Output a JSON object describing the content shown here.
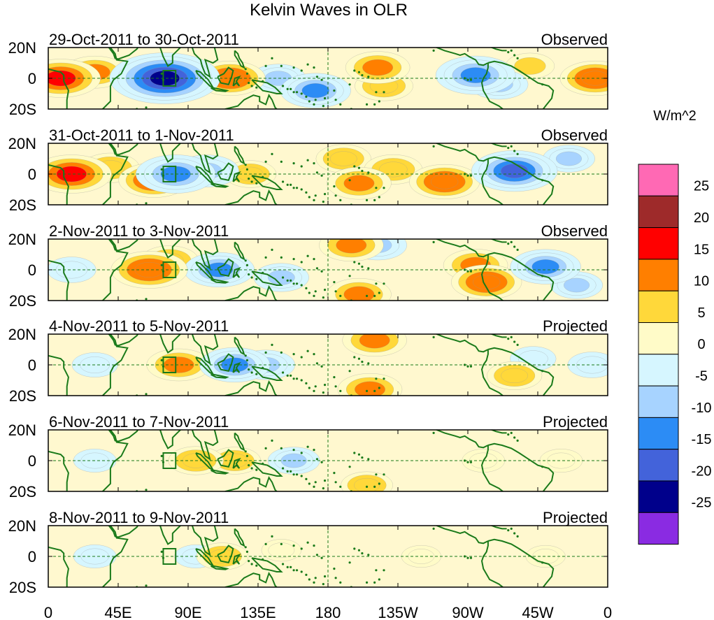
{
  "chart_data": {
    "type": "heatmap",
    "title": "Kelvin Waves in OLR",
    "units_label": "W/m^2",
    "xaxis": {
      "range_deg_east": [
        0,
        360
      ],
      "tick_labels": [
        "0",
        "45E",
        "90E",
        "135E",
        "180",
        "135W",
        "90W",
        "45W",
        "0"
      ],
      "tick_values_deg_east": [
        0,
        45,
        90,
        135,
        180,
        225,
        270,
        315,
        360
      ]
    },
    "yaxis": {
      "range_deg": [
        -20,
        20
      ],
      "tick_labels": [
        "20N",
        "0",
        "20S"
      ],
      "tick_values_deg": [
        20,
        0,
        -20
      ]
    },
    "reference_lines": {
      "equator": 0,
      "dateline": 180
    },
    "highlight_box": {
      "lon": [
        74,
        82
      ],
      "lat": [
        -5,
        5
      ]
    },
    "colorbar": {
      "levels": [
        25,
        20,
        15,
        10,
        5,
        0,
        -5,
        -10,
        -15,
        -20,
        -25
      ],
      "labels": [
        "25",
        "20",
        "15",
        "10",
        "5",
        "0",
        "-5",
        "-10",
        "-15",
        "-20",
        "-25"
      ],
      "colors": [
        "#ff69b4",
        "#9e2a2a",
        "#ff0000",
        "#ff7f00",
        "#ffd83a",
        "#fffbc8",
        "#d6f6ff",
        "#a7d3ff",
        "#2c8cf5",
        "#4363da",
        "#00008b",
        "#8a2be2"
      ]
    },
    "panels": [
      {
        "period": "29-Oct-2011 to 30-Oct-2011",
        "status": "Observed",
        "anomalies": [
          {
            "lon": 8,
            "lat": 0,
            "value": 15
          },
          {
            "lon": 30,
            "lat": 4,
            "value": 10
          },
          {
            "lon": 75,
            "lat": 0,
            "value": -25
          },
          {
            "lon": 88,
            "lat": 0,
            "value": -12
          },
          {
            "lon": 117,
            "lat": 0,
            "value": 12
          },
          {
            "lon": 148,
            "lat": 0,
            "value": -7
          },
          {
            "lon": 172,
            "lat": -8,
            "value": -12
          },
          {
            "lon": 212,
            "lat": 7,
            "value": 10
          },
          {
            "lon": 216,
            "lat": -5,
            "value": 8
          },
          {
            "lon": 275,
            "lat": 2,
            "value": -15
          },
          {
            "lon": 290,
            "lat": -4,
            "value": -8
          },
          {
            "lon": 310,
            "lat": 8,
            "value": 5
          },
          {
            "lon": 352,
            "lat": 0,
            "value": 12
          }
        ]
      },
      {
        "period": "31-Oct-2011 to 1-Nov-2011",
        "status": "Observed",
        "anomalies": [
          {
            "lon": 15,
            "lat": 0,
            "value": 15
          },
          {
            "lon": 40,
            "lat": 4,
            "value": 8
          },
          {
            "lon": 68,
            "lat": -4,
            "value": 12
          },
          {
            "lon": 82,
            "lat": 0,
            "value": -15
          },
          {
            "lon": 102,
            "lat": 2,
            "value": -10
          },
          {
            "lon": 130,
            "lat": 0,
            "value": 6
          },
          {
            "lon": 190,
            "lat": 10,
            "value": 7
          },
          {
            "lon": 200,
            "lat": -6,
            "value": 10
          },
          {
            "lon": 222,
            "lat": 3,
            "value": 8
          },
          {
            "lon": 255,
            "lat": -5,
            "value": 12
          },
          {
            "lon": 300,
            "lat": 2,
            "value": -17
          },
          {
            "lon": 335,
            "lat": 10,
            "value": -6
          }
        ]
      },
      {
        "period": "2-Nov-2011 to 3-Nov-2011",
        "status": "Observed",
        "anomalies": [
          {
            "lon": 15,
            "lat": 0,
            "value": -5
          },
          {
            "lon": 65,
            "lat": 0,
            "value": 14
          },
          {
            "lon": 78,
            "lat": 6,
            "value": 8
          },
          {
            "lon": 110,
            "lat": 0,
            "value": -12
          },
          {
            "lon": 150,
            "lat": -5,
            "value": -7
          },
          {
            "lon": 195,
            "lat": 16,
            "value": 10
          },
          {
            "lon": 212,
            "lat": 16,
            "value": -8
          },
          {
            "lon": 200,
            "lat": -16,
            "value": 10
          },
          {
            "lon": 275,
            "lat": 3,
            "value": 10
          },
          {
            "lon": 282,
            "lat": -8,
            "value": 12
          },
          {
            "lon": 320,
            "lat": 2,
            "value": -12
          },
          {
            "lon": 340,
            "lat": -10,
            "value": -6
          }
        ]
      },
      {
        "period": "4-Nov-2011 to 5-Nov-2011",
        "status": "Projected",
        "anomalies": [
          {
            "lon": 30,
            "lat": 0,
            "value": -4
          },
          {
            "lon": 84,
            "lat": 0,
            "value": 10
          },
          {
            "lon": 120,
            "lat": 0,
            "value": -12
          },
          {
            "lon": 140,
            "lat": 0,
            "value": -8
          },
          {
            "lon": 210,
            "lat": 16,
            "value": 10
          },
          {
            "lon": 207,
            "lat": -16,
            "value": 10
          },
          {
            "lon": 300,
            "lat": -7,
            "value": 7
          },
          {
            "lon": 312,
            "lat": 4,
            "value": -4
          },
          {
            "lon": 350,
            "lat": 0,
            "value": -5
          }
        ]
      },
      {
        "period": "6-Nov-2011 to 7-Nov-2011",
        "status": "Projected",
        "anomalies": [
          {
            "lon": 30,
            "lat": 0,
            "value": -3
          },
          {
            "lon": 95,
            "lat": 0,
            "value": 7
          },
          {
            "lon": 120,
            "lat": 0,
            "value": 6
          },
          {
            "lon": 158,
            "lat": 0,
            "value": -6
          },
          {
            "lon": 205,
            "lat": -16,
            "value": 6
          },
          {
            "lon": 280,
            "lat": 0,
            "value": 3
          },
          {
            "lon": 330,
            "lat": 0,
            "value": 3
          }
        ]
      },
      {
        "period": "8-Nov-2011 to 9-Nov-2011",
        "status": "Projected",
        "anomalies": [
          {
            "lon": 30,
            "lat": 0,
            "value": -3
          },
          {
            "lon": 95,
            "lat": 0,
            "value": -3
          },
          {
            "lon": 112,
            "lat": 0,
            "value": 6
          },
          {
            "lon": 150,
            "lat": 4,
            "value": 2
          },
          {
            "lon": 240,
            "lat": 0,
            "value": 2
          },
          {
            "lon": 320,
            "lat": 0,
            "value": 2
          }
        ]
      }
    ]
  }
}
